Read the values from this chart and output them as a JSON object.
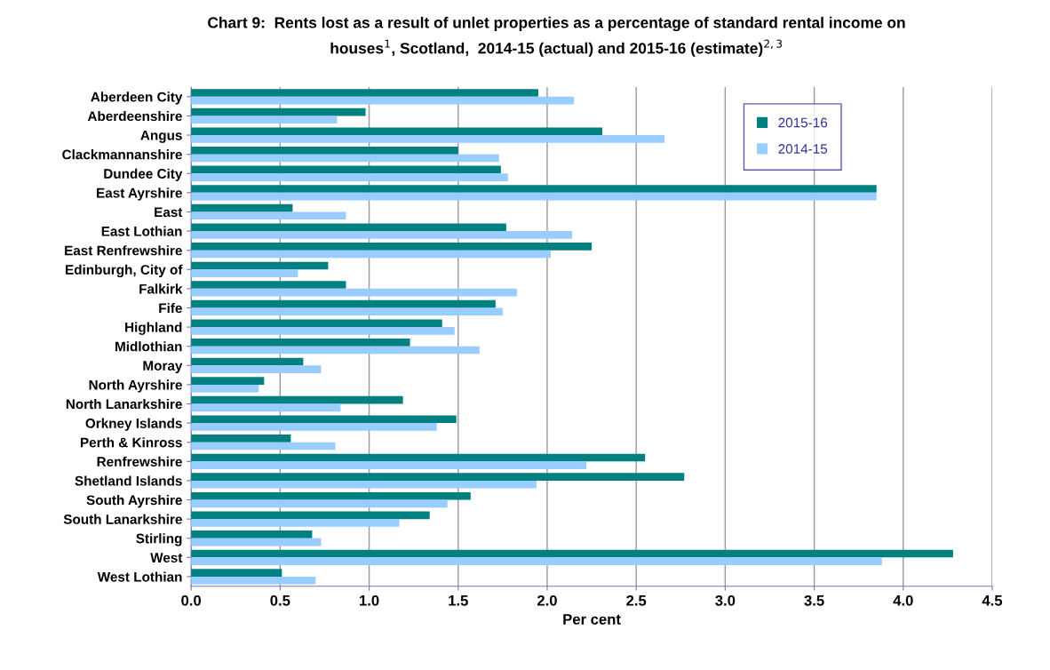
{
  "chart_data": {
    "type": "bar",
    "orientation": "horizontal",
    "title": "Chart 9:  Rents lost as a result of unlet properties as a percentage of standard rental income on\nhouses$^{1}$, Scotland,  2014-15 (actual) and 2015-16 (estimate)$^{2,3}$",
    "xlabel": "Per cent",
    "categories": [
      "Aberdeen City",
      "Aberdeenshire",
      "Angus",
      "Clackmannanshire",
      "Dundee City",
      "East Ayrshire",
      "East",
      "East Lothian",
      "East Renfrewshire",
      "Edinburgh, City of",
      "Falkirk",
      "Fife",
      "Highland",
      "Midlothian",
      "Moray",
      "North Ayrshire",
      "North Lanarkshire",
      "Orkney Islands",
      "Perth & Kinross",
      "Renfrewshire",
      "Shetland Islands",
      "South Ayrshire",
      "South Lanarkshire",
      "Stirling",
      "West",
      "West Lothian"
    ],
    "series": [
      {
        "name": "2015-16",
        "color": "#008080",
        "values": [
          1.95,
          0.98,
          2.31,
          1.5,
          1.74,
          3.85,
          0.57,
          1.77,
          2.25,
          0.77,
          0.87,
          1.71,
          1.41,
          1.23,
          0.63,
          0.41,
          1.19,
          1.49,
          0.56,
          2.55,
          2.77,
          1.57,
          1.34,
          0.68,
          4.28,
          0.51
        ]
      },
      {
        "name": "2014-15",
        "color": "#99ccff",
        "values": [
          2.15,
          0.82,
          2.66,
          1.73,
          1.78,
          3.85,
          0.87,
          2.14,
          2.02,
          0.6,
          1.83,
          1.75,
          1.48,
          1.62,
          0.73,
          0.38,
          0.84,
          1.38,
          0.81,
          2.22,
          1.94,
          1.44,
          1.17,
          0.73,
          3.88,
          0.7
        ]
      }
    ],
    "xlim": [
      0,
      4.5
    ],
    "xticks": [
      {
        "value": 0,
        "label": "0.0"
      },
      {
        "value": 0.5,
        "label": "0.5"
      },
      {
        "value": 1,
        "label": "1.0"
      },
      {
        "value": 1.5,
        "label": "1.5"
      },
      {
        "value": 2,
        "label": "2.0"
      },
      {
        "value": 2.5,
        "label": "2.5"
      },
      {
        "value": 3,
        "label": "3.0"
      },
      {
        "value": 3.5,
        "label": "3.5"
      },
      {
        "value": 4,
        "label": "4.0"
      },
      {
        "value": 4.5,
        "label": "4.5"
      }
    ],
    "grid": "x",
    "legend": "top right"
  }
}
